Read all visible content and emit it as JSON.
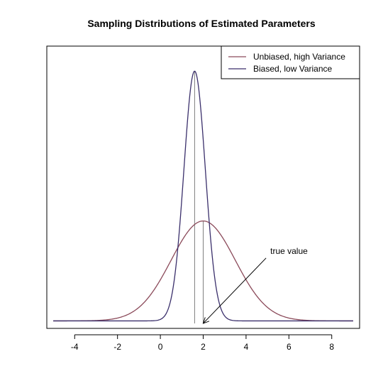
{
  "chart_data": {
    "type": "line",
    "title": "Sampling Distributions of Estimated Parameters",
    "xlabel": "",
    "ylabel": "",
    "xlim": [
      -5.3,
      9.3
    ],
    "ylim": [
      -0.03,
      1.1
    ],
    "x_ticks": [
      -4,
      -2,
      0,
      2,
      4,
      6,
      8
    ],
    "x_tick_labels": [
      "-4",
      "-2",
      "0",
      "2",
      "4",
      "6",
      "8"
    ],
    "grid": false,
    "legend_position": "top-right",
    "series": [
      {
        "name": "Unbiased, high Variance",
        "color": "#8b4a5a",
        "distribution": "normal",
        "mean": 2.0,
        "sd": 1.5,
        "peak": 0.4,
        "x_range": [
          -5,
          9
        ]
      },
      {
        "name": "Biased, low Variance",
        "color": "#3a2f6b",
        "distribution": "normal",
        "mean": 1.6,
        "sd": 0.5,
        "peak": 1.0,
        "x_range": [
          -5,
          9
        ]
      }
    ],
    "vertical_lines": [
      {
        "x": 1.6,
        "color": "#808080"
      },
      {
        "x": 2.0,
        "color": "#808080"
      }
    ],
    "annotations": [
      {
        "text": "true value",
        "x": 5.0,
        "y": 0.28,
        "arrow_to": [
          2.0,
          -0.01
        ]
      }
    ]
  }
}
